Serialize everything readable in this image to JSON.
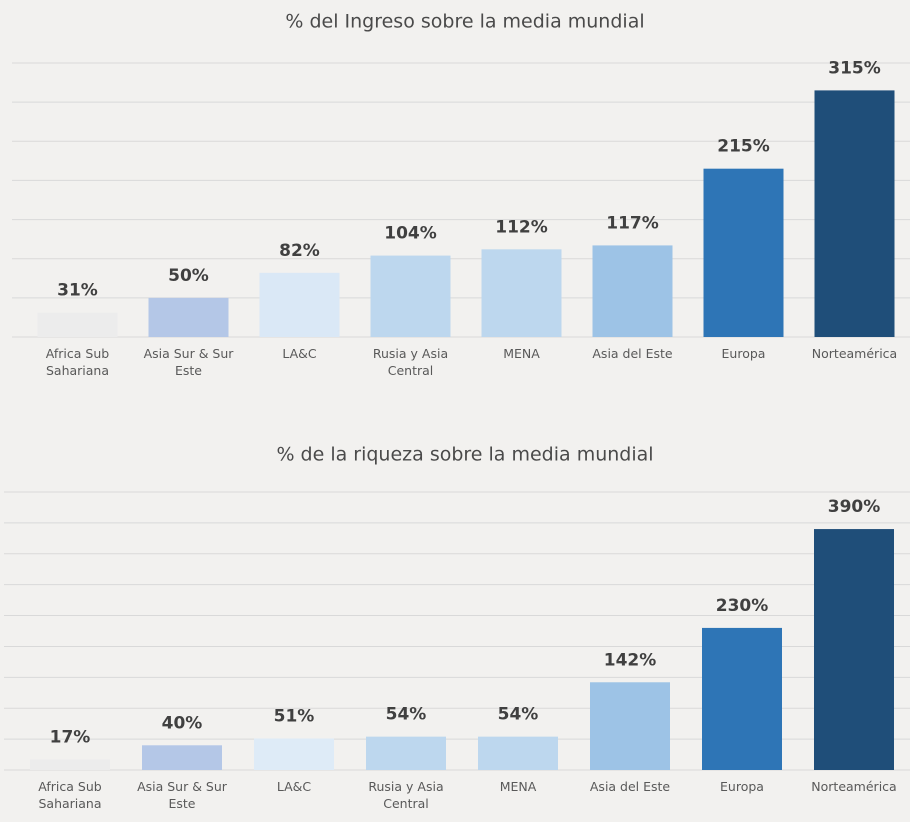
{
  "chart_data": [
    {
      "type": "bar",
      "title": "% del Ingreso sobre la media mundial",
      "categories": [
        "Africa Sub Sahariana",
        "Asia Sur & Sur Este",
        "LA&C",
        "Rusia y Asia Central",
        "MENA",
        "Asia del Este",
        "Europa",
        "Norteamérica"
      ],
      "values": [
        31,
        50,
        82,
        104,
        112,
        117,
        215,
        315
      ],
      "value_labels": [
        "31%",
        "50%",
        "82%",
        "104%",
        "112%",
        "117%",
        "215%",
        "315%"
      ],
      "colors": [
        "#ececec",
        "#b4c7e7",
        "#dae8f6",
        "#bdd7ee",
        "#bdd7ee",
        "#9dc3e6",
        "#2e75b6",
        "#1f4e79"
      ],
      "ylim": [
        0,
        350
      ],
      "yticks": [
        0,
        50,
        100,
        150,
        200,
        250,
        300,
        350
      ],
      "grid": true
    },
    {
      "type": "bar",
      "title": "% de la riqueza sobre la media mundial",
      "categories": [
        "Africa Sub Sahariana",
        "Asia Sur & Sur Este",
        "LA&C",
        "Rusia y Asia Central",
        "MENA",
        "Asia del Este",
        "Europa",
        "Norteamérica"
      ],
      "values": [
        17,
        40,
        51,
        54,
        54,
        142,
        230,
        390
      ],
      "value_labels": [
        "17%",
        "40%",
        "51%",
        "54%",
        "54%",
        "142%",
        "230%",
        "390%"
      ],
      "colors": [
        "#ececec",
        "#b4c7e7",
        "#deebf7",
        "#bdd7ee",
        "#bdd7ee",
        "#9dc3e6",
        "#2e75b6",
        "#1f4e79"
      ],
      "ylim": [
        0,
        450
      ],
      "yticks": [
        0,
        50,
        100,
        150,
        200,
        250,
        300,
        350,
        400,
        450
      ],
      "grid": true
    }
  ]
}
